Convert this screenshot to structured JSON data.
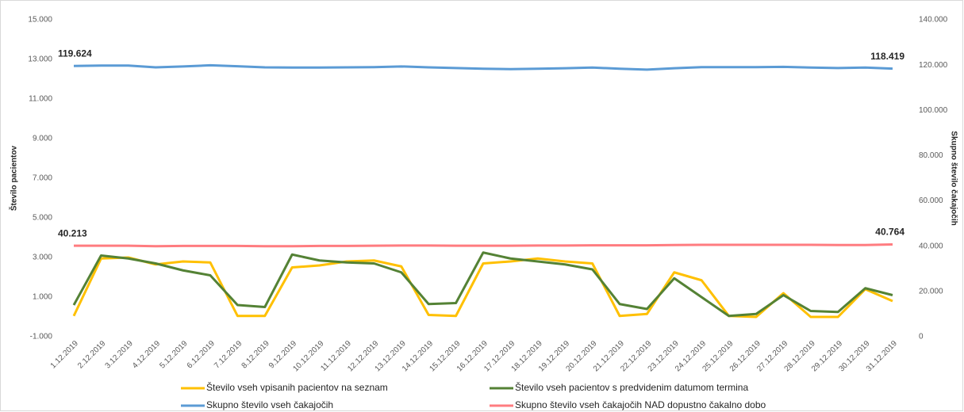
{
  "chart_data": {
    "type": "line",
    "y_label": "Število pacientov",
    "y2_label": "Skupno število čakajočih",
    "categories": [
      "1.12.2019",
      "2.12.2019",
      "3.12.2019",
      "4.12.2019",
      "5.12.2019",
      "6.12.2019",
      "7.12.2019",
      "8.12.2019",
      "9.12.2019",
      "10.12.2019",
      "11.12.2019",
      "12.12.2019",
      "13.12.2019",
      "14.12.2019",
      "15.12.2019",
      "16.12.2019",
      "17.12.2019",
      "18.12.2019",
      "19.12.2019",
      "20.12.2019",
      "21.12.2019",
      "22.12.2019",
      "23.12.2019",
      "24.12.2019",
      "25.12.2019",
      "26.12.2019",
      "27.12.2019",
      "28.12.2019",
      "29.12.2019",
      "30.12.2019",
      "31.12.2019"
    ],
    "series": [
      {
        "name": "Število vseh vpisanih pacientov na seznam",
        "color": "#ffc000",
        "axis": "y",
        "values": [
          50,
          2950,
          3000,
          2650,
          2800,
          2750,
          50,
          50,
          2500,
          2600,
          2800,
          2850,
          2550,
          100,
          50,
          2700,
          2800,
          2950,
          2800,
          2700,
          50,
          150,
          2250,
          1850,
          50,
          0,
          1200,
          0,
          0,
          1400,
          800
        ]
      },
      {
        "name": "Število vseh pacientov s predvidenim datumom termina",
        "color": "#548235",
        "axis": "y",
        "values": [
          600,
          3100,
          2950,
          2700,
          2350,
          2100,
          600,
          500,
          3150,
          2850,
          2750,
          2700,
          2250,
          650,
          700,
          3250,
          2950,
          2800,
          2650,
          2400,
          650,
          400,
          1950,
          1000,
          50,
          150,
          1100,
          300,
          250,
          1450,
          1100
        ]
      },
      {
        "name": "Skupno število vseh čakajočih",
        "color": "#5b9bd5",
        "axis": "y2",
        "values": [
          119624,
          119800,
          119800,
          119000,
          119400,
          119900,
          119500,
          119000,
          118900,
          118900,
          119000,
          119100,
          119400,
          119000,
          118700,
          118400,
          118200,
          118400,
          118600,
          118900,
          118400,
          118000,
          118600,
          119100,
          119100,
          119100,
          119200,
          118900,
          118700,
          118900,
          118419
        ],
        "value_labels": [
          "119.624",
          null,
          null,
          null,
          null,
          null,
          null,
          null,
          null,
          null,
          null,
          null,
          null,
          null,
          null,
          null,
          null,
          null,
          null,
          null,
          null,
          null,
          null,
          null,
          null,
          null,
          null,
          null,
          null,
          null,
          "118.419"
        ]
      },
      {
        "name": "Skupno število vseh čakajočih NAD dopustno čakalno dobo",
        "color": "#ff7c80",
        "axis": "y2",
        "values": [
          40213,
          40200,
          40200,
          40000,
          40100,
          40100,
          40100,
          40000,
          40000,
          40100,
          40100,
          40200,
          40300,
          40300,
          40200,
          40200,
          40200,
          40300,
          40300,
          40400,
          40400,
          40400,
          40500,
          40600,
          40600,
          40600,
          40600,
          40600,
          40500,
          40500,
          40764
        ],
        "value_labels": [
          "40.213",
          null,
          null,
          null,
          null,
          null,
          null,
          null,
          null,
          null,
          null,
          null,
          null,
          null,
          null,
          null,
          null,
          null,
          null,
          null,
          null,
          null,
          null,
          null,
          null,
          null,
          null,
          null,
          null,
          null,
          "40.764"
        ]
      }
    ],
    "ylim": [
      -1000,
      15000
    ],
    "yticks": [
      {
        "value": -1000,
        "label": "-1.000"
      },
      {
        "value": 1000,
        "label": "1.000"
      },
      {
        "value": 3000,
        "label": "3.000"
      },
      {
        "value": 5000,
        "label": "5.000"
      },
      {
        "value": 7000,
        "label": "7.000"
      },
      {
        "value": 9000,
        "label": "9.000"
      },
      {
        "value": 11000,
        "label": "11.000"
      },
      {
        "value": 13000,
        "label": "13.000"
      },
      {
        "value": 15000,
        "label": "15.000"
      }
    ],
    "y2lim": [
      0,
      140000
    ],
    "y2ticks": [
      0,
      {
        "value": 20000,
        "label": "20.000"
      },
      {
        "value": 40000,
        "label": "40.000"
      },
      {
        "value": 60000,
        "label": "60.000"
      },
      {
        "value": 80000,
        "label": "80.000"
      },
      {
        "value": 100000,
        "label": "100.000"
      },
      {
        "value": 120000,
        "label": "120.000"
      },
      {
        "value": 140000,
        "label": "140.000"
      }
    ],
    "grid": false,
    "legend": "bottom"
  }
}
